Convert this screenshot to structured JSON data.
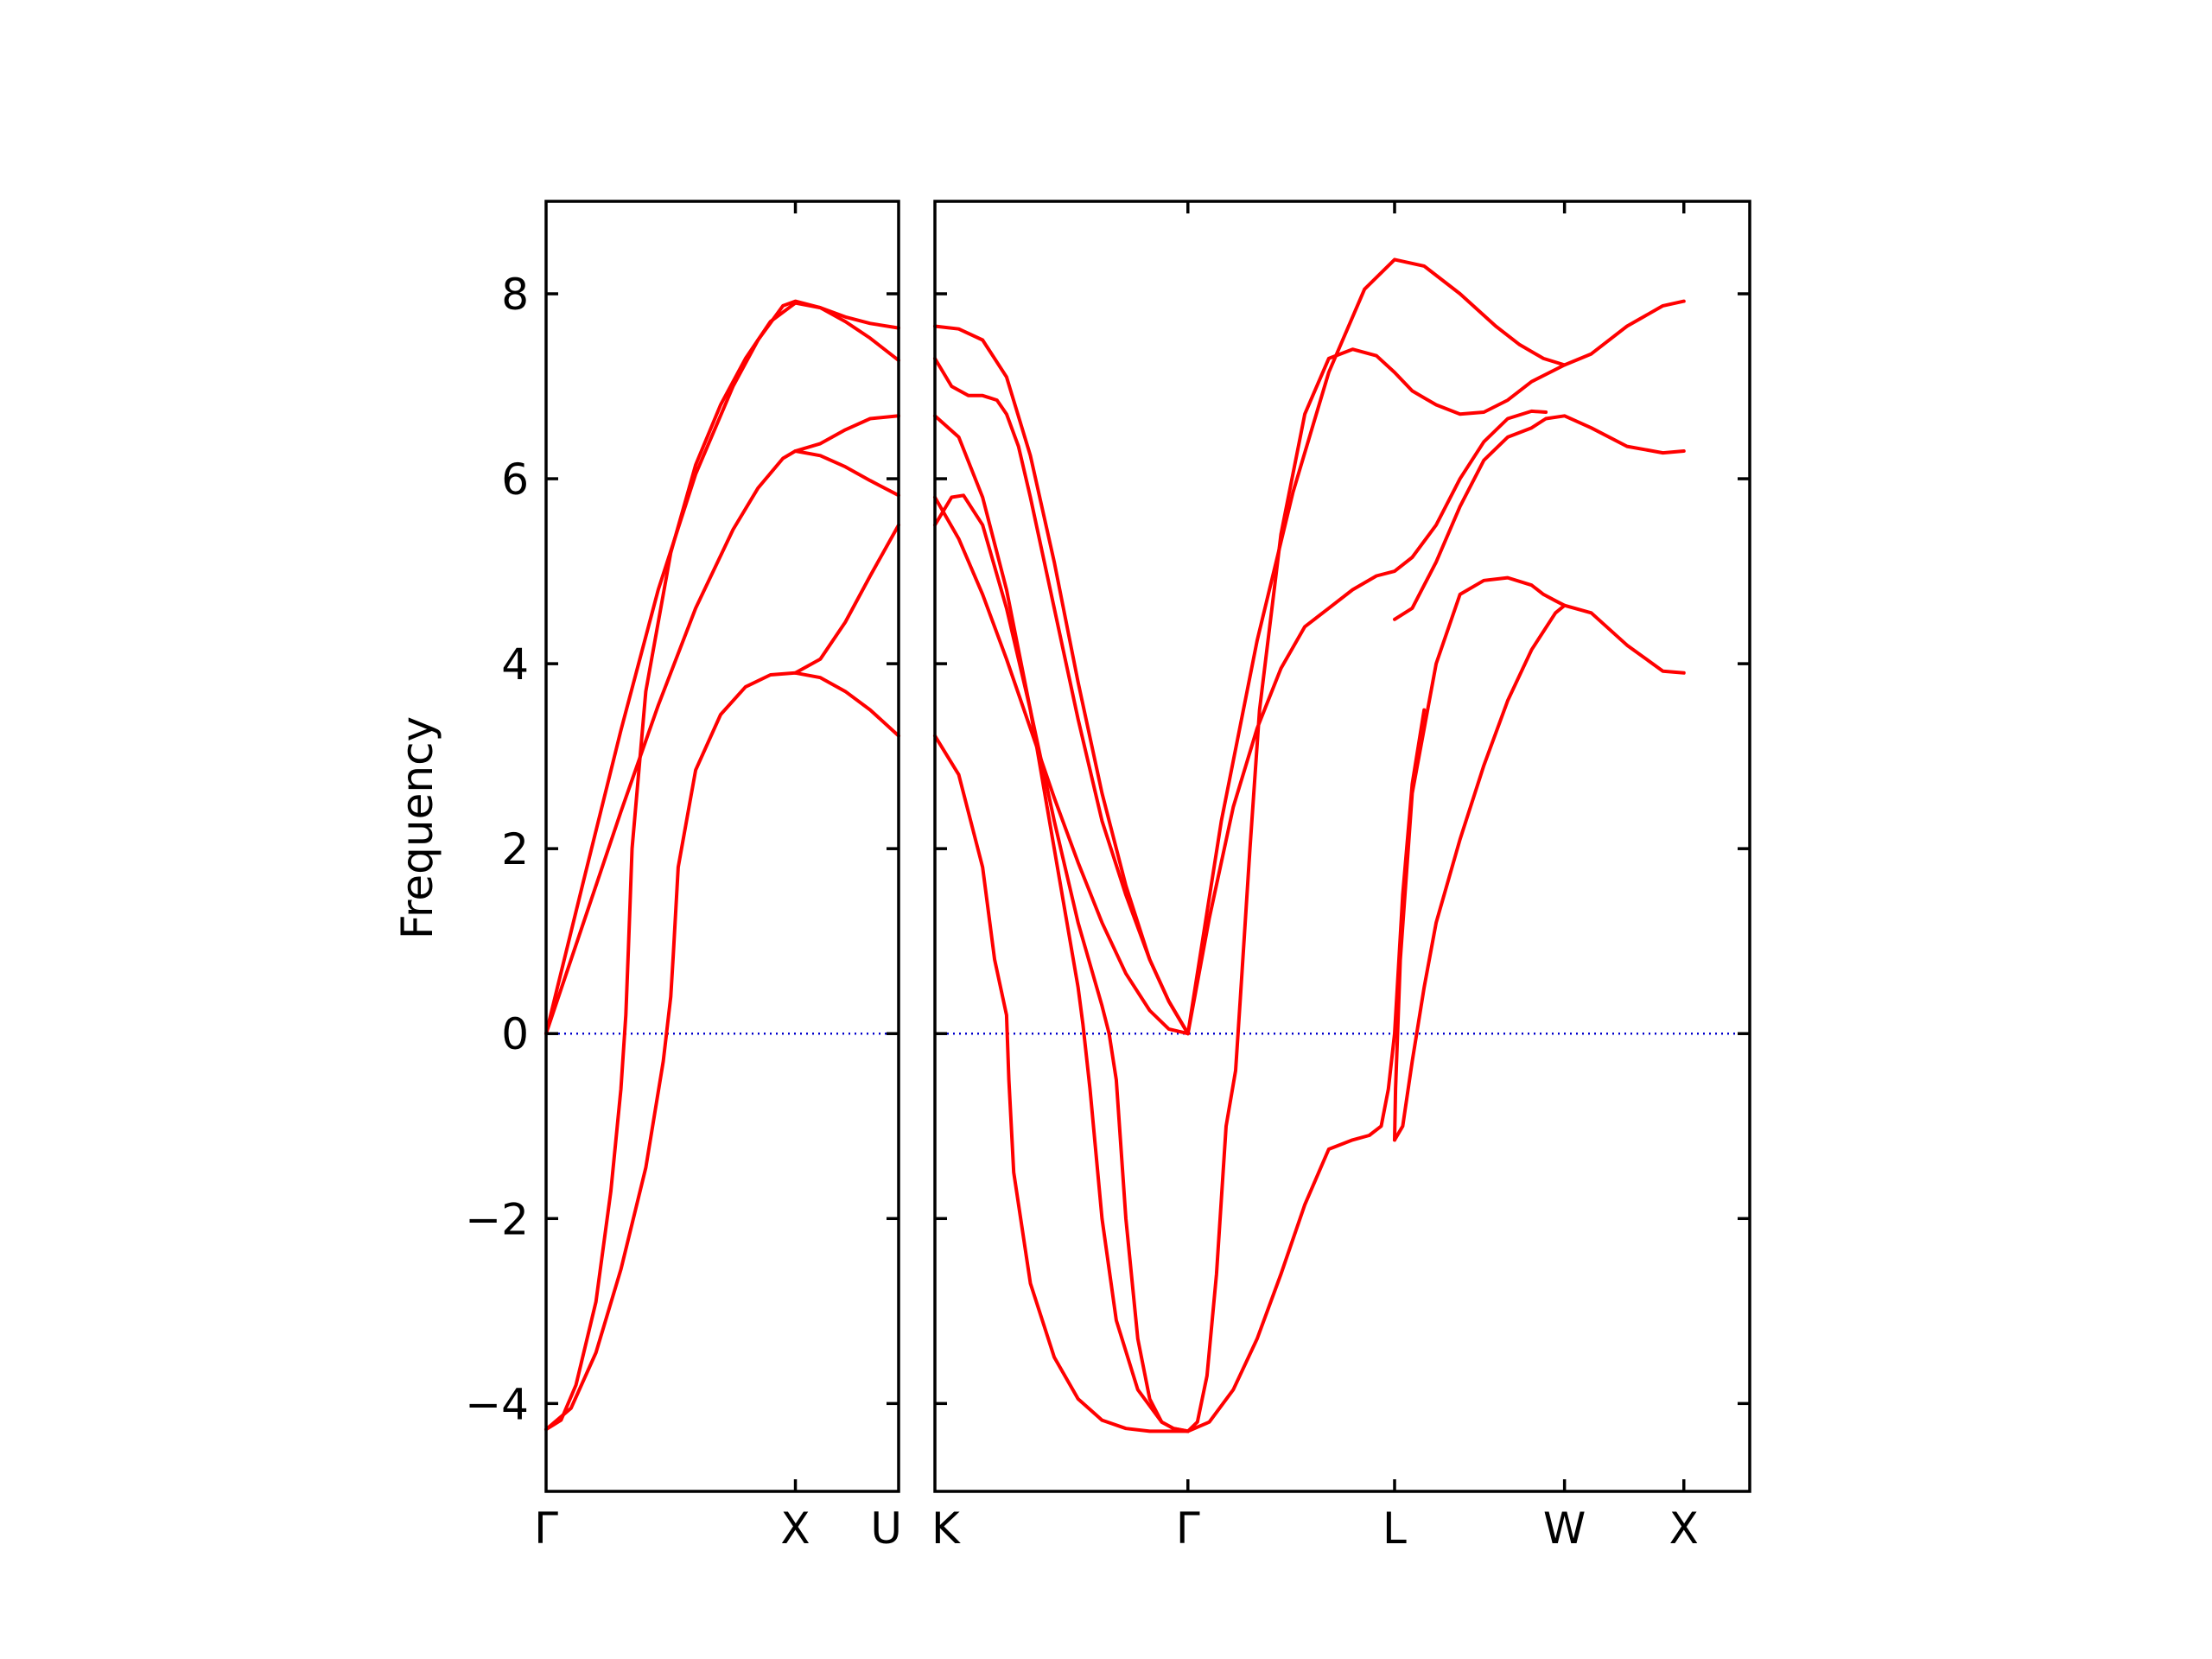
{
  "chart_data": {
    "type": "line",
    "ylabel": "Frequency",
    "ylim": [
      -4.95,
      9.0
    ],
    "yticks": [
      -4,
      -2,
      0,
      2,
      4,
      6,
      8
    ],
    "ytick_labels": [
      "−4",
      "−2",
      "0",
      "2",
      "4",
      "6",
      "8"
    ],
    "colors": {
      "bands": "#ff0000",
      "zero_line": "#0000cc"
    },
    "zero_line": true,
    "grid": false,
    "panels": [
      {
        "name": "gamma-x-u",
        "path_length": 1.414,
        "ticks": [
          {
            "pos": 0.0,
            "label": "Γ"
          },
          {
            "pos": 1.0,
            "label": "X"
          },
          {
            "pos": 1.414,
            "label": "U"
          }
        ],
        "series": [
          {
            "x": [
              0,
              0.15,
              0.3,
              0.45,
              0.6,
              0.75,
              0.85,
              0.95,
              1.0,
              1.1,
              1.2,
              1.3,
              1.414
            ],
            "values": [
              0,
              1.65,
              3.28,
              4.8,
              6.05,
              7.0,
              7.5,
              7.87,
              7.92,
              7.85,
              7.75,
              7.68,
              7.63
            ]
          },
          {
            "x": [
              0,
              0.15,
              0.3,
              0.45,
              0.6,
              0.75,
              0.85,
              0.95,
              1.0,
              1.1,
              1.2,
              1.3,
              1.414
            ],
            "values": [
              0,
              1.2,
              2.4,
              3.55,
              4.6,
              5.45,
              5.9,
              6.22,
              6.3,
              6.25,
              6.13,
              5.98,
              5.82
            ]
          },
          {
            "x": [
              0,
              0.06,
              0.12,
              0.2,
              0.26,
              0.3,
              0.32,
              0.33,
              0.345,
              0.4,
              0.5,
              0.6,
              0.7,
              0.8,
              0.9,
              1.0,
              1.1,
              1.2,
              1.3,
              1.414
            ],
            "values": [
              -4.28,
              -4.18,
              -3.8,
              -2.9,
              -1.7,
              -0.6,
              0.2,
              0.9,
              2.0,
              3.7,
              5.2,
              6.15,
              6.8,
              7.3,
              7.7,
              7.9,
              7.85,
              7.7,
              7.52,
              7.28
            ]
          },
          {
            "x": [
              0,
              0.1,
              0.2,
              0.3,
              0.4,
              0.47,
              0.5,
              0.51,
              0.53,
              0.6,
              0.7,
              0.8,
              0.9,
              1.0,
              1.1,
              1.2,
              1.3,
              1.414
            ],
            "values": [
              -4.28,
              -4.05,
              -3.45,
              -2.55,
              -1.45,
              -0.3,
              0.4,
              0.85,
              1.8,
              2.85,
              3.45,
              3.75,
              3.88,
              3.9,
              3.85,
              3.7,
              3.5,
              3.22
            ]
          },
          {
            "x": [
              1.0,
              1.1,
              1.2,
              1.3,
              1.414
            ],
            "values": [
              6.3,
              6.38,
              6.53,
              6.65,
              6.68
            ]
          },
          {
            "x": [
              1.0,
              1.1,
              1.2,
              1.3,
              1.414
            ],
            "values": [
              3.9,
              4.05,
              4.45,
              4.95,
              5.5
            ]
          }
        ]
      },
      {
        "name": "k-gamma-l-w-x",
        "path_length": 3.414,
        "ticks": [
          {
            "pos": 0.0,
            "label": "K"
          },
          {
            "pos": 1.06,
            "label": "Γ"
          },
          {
            "pos": 1.926,
            "label": "L"
          },
          {
            "pos": 2.638,
            "label": "W"
          },
          {
            "pos": 3.138,
            "label": "X"
          }
        ],
        "series": [
          {
            "x": [
              0,
              0.1,
              0.2,
              0.3,
              0.4,
              0.5,
              0.6,
              0.7,
              0.8,
              0.9,
              0.98,
              1.06
            ],
            "values": [
              7.65,
              7.62,
              7.5,
              7.1,
              6.25,
              5.1,
              3.8,
              2.6,
              1.6,
              0.8,
              0.35,
              0
            ]
          },
          {
            "x": [
              0,
              0.07,
              0.14,
              0.2,
              0.26,
              0.3,
              0.35,
              0.4,
              0.5,
              0.6,
              0.7,
              0.8,
              0.9,
              0.98,
              1.06
            ],
            "values": [
              7.3,
              7.0,
              6.9,
              6.9,
              6.85,
              6.7,
              6.35,
              5.8,
              4.6,
              3.4,
              2.3,
              1.5,
              0.8,
              0.35,
              0
            ]
          },
          {
            "x": [
              0,
              0.1,
              0.2,
              0.3,
              0.4,
              0.5,
              0.6,
              0.62,
              0.65,
              0.7,
              0.76,
              0.85,
              0.95,
              1.0,
              1.06
            ],
            "values": [
              6.68,
              6.45,
              5.8,
              4.8,
              3.5,
              2.0,
              0.5,
              0.1,
              -0.6,
              -2.0,
              -3.1,
              -3.85,
              -4.2,
              -4.27,
              -4.3
            ]
          },
          {
            "x": [
              0,
              0.07,
              0.12,
              0.2,
              0.3,
              0.4,
              0.5,
              0.6,
              0.7,
              0.73,
              0.76,
              0.8,
              0.85,
              0.9,
              0.95,
              1.0,
              1.06
            ],
            "values": [
              5.5,
              5.8,
              5.82,
              5.5,
              4.6,
              3.5,
              2.3,
              1.2,
              0.3,
              0.0,
              -0.5,
              -2.0,
              -3.3,
              -3.95,
              -4.2,
              -4.27,
              -4.3
            ]
          },
          {
            "x": [
              0,
              0.1,
              0.2,
              0.3,
              0.4,
              0.5,
              0.6,
              0.7,
              0.8,
              0.9,
              0.98,
              1.06
            ],
            "values": [
              5.8,
              5.35,
              4.75,
              4.05,
              3.3,
              2.55,
              1.85,
              1.2,
              0.65,
              0.25,
              0.05,
              0
            ]
          },
          {
            "x": [
              0,
              0.1,
              0.2,
              0.25,
              0.3,
              0.31,
              0.33,
              0.4,
              0.5,
              0.6,
              0.7,
              0.8,
              0.9,
              1.0,
              1.06
            ],
            "values": [
              3.22,
              2.8,
              1.8,
              0.8,
              0.2,
              -0.5,
              -1.5,
              -2.7,
              -3.5,
              -3.95,
              -4.18,
              -4.27,
              -4.3,
              -4.3,
              -4.3
            ]
          },
          {
            "x": [
              1.06,
              1.2,
              1.35,
              1.5,
              1.65,
              1.8,
              1.926,
              2.05,
              2.2,
              2.35,
              2.45,
              2.55,
              2.638,
              2.75,
              2.9,
              3.05,
              3.138
            ],
            "values": [
              0,
              2.3,
              4.25,
              5.85,
              7.15,
              8.05,
              8.37,
              8.3,
              8.0,
              7.65,
              7.45,
              7.3,
              7.23,
              7.35,
              7.65,
              7.87,
              7.92
            ]
          },
          {
            "x": [
              1.06,
              1.15,
              1.25,
              1.35,
              1.45,
              1.55,
              1.65,
              1.75,
              1.85,
              1.926,
              2.0,
              2.1,
              2.2,
              2.3,
              2.4,
              2.5,
              2.56
            ],
            "values": [
              0,
              1.25,
              2.45,
              3.3,
              3.95,
              4.4,
              4.6,
              4.8,
              4.95,
              5.0,
              5.15,
              5.5,
              6.0,
              6.4,
              6.65,
              6.73,
              6.72
            ]
          },
          {
            "x": [
              1.06,
              1.1,
              1.14,
              1.18,
              1.22,
              1.26,
              1.28,
              1.3,
              1.32,
              1.36,
              1.45,
              1.55,
              1.65,
              1.75,
              1.85,
              1.926,
              2.0,
              2.1,
              2.2,
              2.3,
              2.4,
              2.5,
              2.638
            ],
            "values": [
              -4.3,
              -4.2,
              -3.7,
              -2.6,
              -1.0,
              -0.4,
              0.4,
              1.2,
              2.0,
              3.5,
              5.4,
              6.7,
              7.3,
              7.4,
              7.33,
              7.15,
              6.95,
              6.8,
              6.7,
              6.72,
              6.85,
              7.05,
              7.23
            ]
          },
          {
            "x": [
              1.06,
              1.15,
              1.25,
              1.35,
              1.45,
              1.55,
              1.65,
              1.75,
              1.82,
              1.87,
              1.9,
              1.926,
              1.96,
              2.0,
              2.05
            ],
            "values": [
              -4.3,
              -4.2,
              -3.85,
              -3.3,
              -2.6,
              -1.85,
              -1.25,
              -1.15,
              -1.1,
              -1.0,
              -0.6,
              0.0,
              1.5,
              2.7,
              3.5
            ]
          },
          {
            "x": [
              1.926,
              2.0,
              2.1,
              2.2,
              2.3,
              2.4,
              2.5,
              2.56,
              2.638,
              2.75,
              2.9,
              3.05,
              3.138
            ],
            "values": [
              4.48,
              4.6,
              5.1,
              5.7,
              6.2,
              6.45,
              6.55,
              6.65,
              6.68,
              6.55,
              6.35,
              6.28,
              6.3
            ]
          },
          {
            "x": [
              1.926,
              1.93,
              1.95,
              2.0,
              2.1,
              2.2,
              2.3,
              2.4,
              2.5,
              2.55,
              2.6,
              2.638,
              2.75,
              2.9,
              3.05,
              3.138
            ],
            "values": [
              -1.15,
              -0.6,
              0.8,
              2.6,
              4.0,
              4.75,
              4.9,
              4.93,
              4.85,
              4.75,
              4.68,
              4.63,
              4.55,
              4.2,
              3.92,
              3.9
            ]
          },
          {
            "x": [
              1.926,
              1.96,
              2.0,
              2.05,
              2.1,
              2.2,
              2.3,
              2.4,
              2.5,
              2.6,
              2.638
            ],
            "values": [
              -1.15,
              -1.0,
              -0.3,
              0.5,
              1.2,
              2.1,
              2.9,
              3.6,
              4.15,
              4.55,
              4.63
            ]
          }
        ]
      }
    ]
  }
}
